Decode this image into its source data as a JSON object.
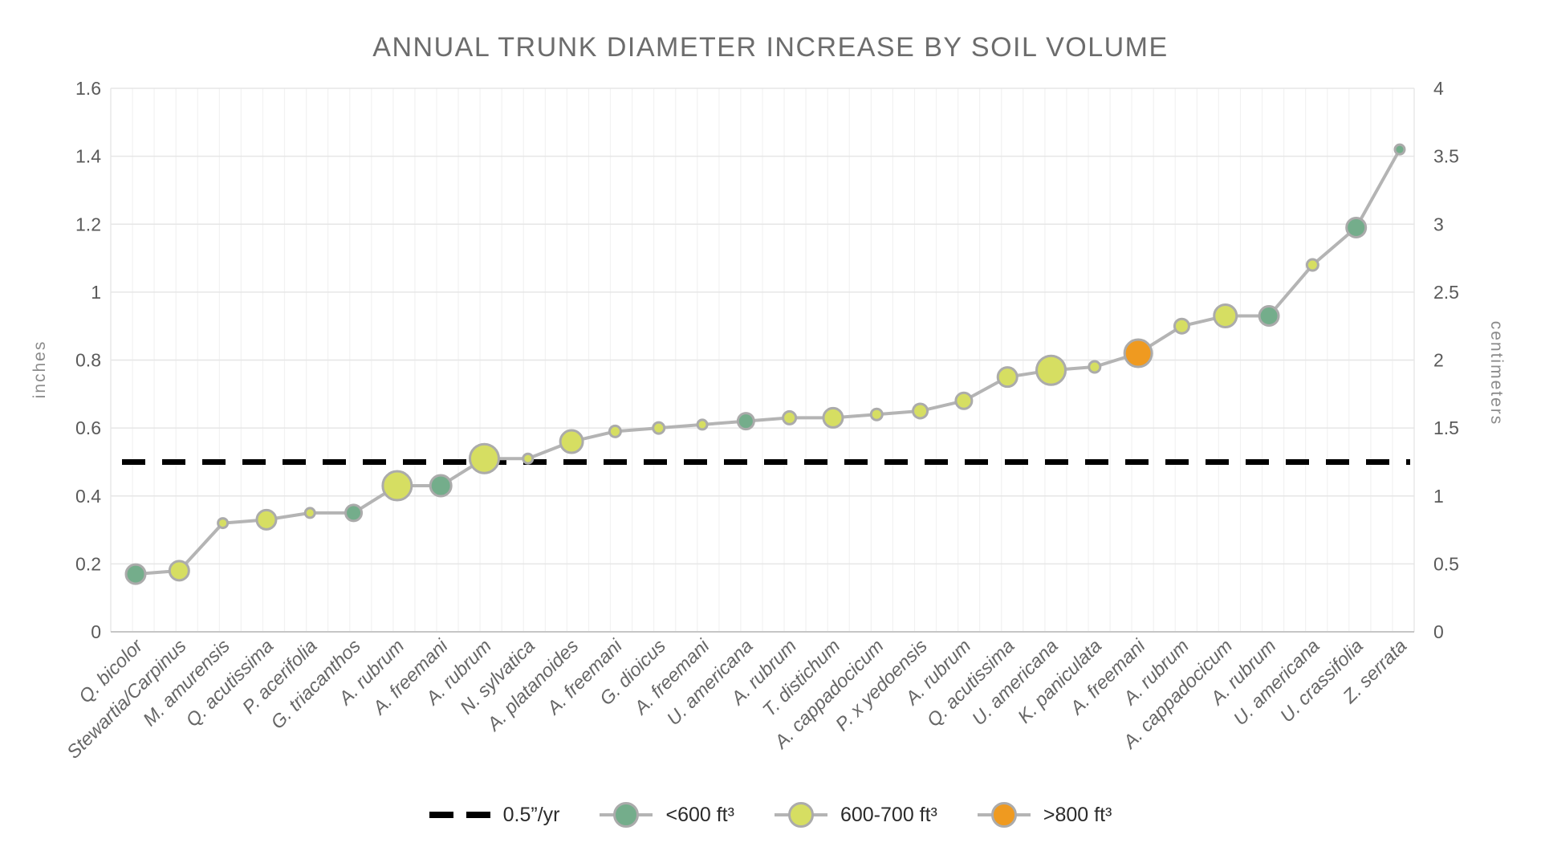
{
  "title": "ANNUAL TRUNK DIAMETER INCREASE BY SOIL VOLUME",
  "y_axis": {
    "label": "inches",
    "ticks": [
      "0",
      "0.2",
      "0.4",
      "0.6",
      "0.8",
      "1",
      "1.2",
      "1.4",
      "1.6"
    ],
    "min": 0,
    "max": 1.6
  },
  "y2_axis": {
    "label": "centimeters",
    "ticks": [
      "0",
      "0.5",
      "1",
      "1.5",
      "2",
      "2.5",
      "3",
      "3.5",
      "4"
    ],
    "min": 0,
    "max": 4
  },
  "colors": {
    "<600 ft³": "#74ad8b",
    "600-700 ft³": "#d6de62",
    ">800 ft³": "#ef9a20",
    "trend_line": "#b4b4b4",
    "marker_stroke": "#ababab",
    "reference_line": "#000000"
  },
  "legend": [
    {
      "marker": "dash",
      "label": "0.5”/yr"
    },
    {
      "marker": "bubble",
      "color_key": "<600 ft³",
      "label": "<600 ft³"
    },
    {
      "marker": "bubble",
      "color_key": "600-700 ft³",
      "label": "600-700 ft³"
    },
    {
      "marker": "bubble",
      "color_key": ">800 ft³",
      "label": ">800 ft³"
    }
  ],
  "chart_data": {
    "type": "line",
    "title": "ANNUAL TRUNK DIAMETER INCREASE BY SOIL VOLUME",
    "xlabel": "",
    "ylabel": "inches",
    "y2label": "centimeters",
    "ylim": [
      0,
      1.6
    ],
    "y2lim": [
      0,
      4
    ],
    "grid": true,
    "legend_position": "bottom",
    "reference_line": {
      "value": 0.5,
      "label": "0.5”/yr"
    },
    "points": [
      {
        "species": "Q. bicolor",
        "inches_per_year": 0.17,
        "soil_volume": "<600 ft³",
        "marker_radius_px": 12
      },
      {
        "species": "Stewartia/Carpinus",
        "inches_per_year": 0.18,
        "soil_volume": "600-700 ft³",
        "marker_radius_px": 12
      },
      {
        "species": "M. amurensis",
        "inches_per_year": 0.32,
        "soil_volume": "600-700 ft³",
        "marker_radius_px": 6
      },
      {
        "species": "Q. acutissima",
        "inches_per_year": 0.33,
        "soil_volume": "600-700 ft³",
        "marker_radius_px": 12
      },
      {
        "species": "P. acerifolia",
        "inches_per_year": 0.35,
        "soil_volume": "600-700 ft³",
        "marker_radius_px": 6
      },
      {
        "species": "G. triacanthos",
        "inches_per_year": 0.35,
        "soil_volume": "<600 ft³",
        "marker_radius_px": 10
      },
      {
        "species": "A. rubrum",
        "inches_per_year": 0.43,
        "soil_volume": "600-700 ft³",
        "marker_radius_px": 18
      },
      {
        "species": "A. freemani",
        "inches_per_year": 0.43,
        "soil_volume": "<600 ft³",
        "marker_radius_px": 13
      },
      {
        "species": "A. rubrum",
        "inches_per_year": 0.51,
        "soil_volume": "600-700 ft³",
        "marker_radius_px": 18
      },
      {
        "species": "N. sylvatica",
        "inches_per_year": 0.51,
        "soil_volume": "600-700 ft³",
        "marker_radius_px": 6
      },
      {
        "species": "A. platanoides",
        "inches_per_year": 0.56,
        "soil_volume": "600-700 ft³",
        "marker_radius_px": 14
      },
      {
        "species": "A. freemani",
        "inches_per_year": 0.59,
        "soil_volume": "600-700 ft³",
        "marker_radius_px": 7
      },
      {
        "species": "G. dioicus",
        "inches_per_year": 0.6,
        "soil_volume": "600-700 ft³",
        "marker_radius_px": 7
      },
      {
        "species": "A. freemani",
        "inches_per_year": 0.61,
        "soil_volume": "600-700 ft³",
        "marker_radius_px": 6
      },
      {
        "species": "U. americana",
        "inches_per_year": 0.62,
        "soil_volume": "<600 ft³",
        "marker_radius_px": 10
      },
      {
        "species": "A. rubrum",
        "inches_per_year": 0.63,
        "soil_volume": "600-700 ft³",
        "marker_radius_px": 8
      },
      {
        "species": "T. distichum",
        "inches_per_year": 0.63,
        "soil_volume": "600-700 ft³",
        "marker_radius_px": 12
      },
      {
        "species": "A. cappadocicum",
        "inches_per_year": 0.64,
        "soil_volume": "600-700 ft³",
        "marker_radius_px": 7
      },
      {
        "species": "P. x yedoensis",
        "inches_per_year": 0.65,
        "soil_volume": "600-700 ft³",
        "marker_radius_px": 9
      },
      {
        "species": "A. rubrum",
        "inches_per_year": 0.68,
        "soil_volume": "600-700 ft³",
        "marker_radius_px": 10
      },
      {
        "species": "Q. acutissima",
        "inches_per_year": 0.75,
        "soil_volume": "600-700 ft³",
        "marker_radius_px": 12
      },
      {
        "species": "U. americana",
        "inches_per_year": 0.77,
        "soil_volume": "600-700 ft³",
        "marker_radius_px": 18
      },
      {
        "species": "K. paniculata",
        "inches_per_year": 0.78,
        "soil_volume": "600-700 ft³",
        "marker_radius_px": 7
      },
      {
        "species": "A. freemani",
        "inches_per_year": 0.82,
        "soil_volume": ">800 ft³",
        "marker_radius_px": 17
      },
      {
        "species": "A. rubrum",
        "inches_per_year": 0.9,
        "soil_volume": "600-700 ft³",
        "marker_radius_px": 9
      },
      {
        "species": "A. cappadocicum",
        "inches_per_year": 0.93,
        "soil_volume": "600-700 ft³",
        "marker_radius_px": 14
      },
      {
        "species": "A. rubrum",
        "inches_per_year": 0.93,
        "soil_volume": "<600 ft³",
        "marker_radius_px": 12
      },
      {
        "species": "U. americana",
        "inches_per_year": 1.08,
        "soil_volume": "600-700 ft³",
        "marker_radius_px": 7
      },
      {
        "species": "U. crassifolia",
        "inches_per_year": 1.19,
        "soil_volume": "<600 ft³",
        "marker_radius_px": 12
      },
      {
        "species": "Z. serrata",
        "inches_per_year": 1.42,
        "soil_volume": "<600 ft³",
        "marker_radius_px": 6
      }
    ]
  }
}
